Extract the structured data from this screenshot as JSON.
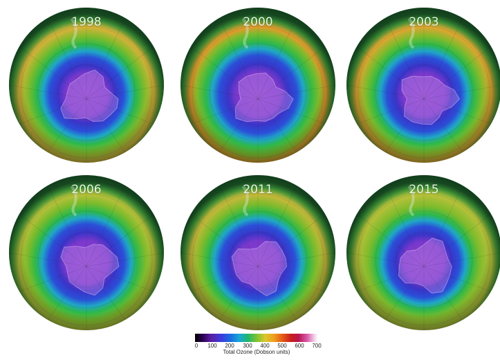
{
  "panels": [
    {
      "year": "1998",
      "hole_scale": 1.0,
      "rim_color": "#d9b23a"
    },
    {
      "year": "2000",
      "hole_scale": 1.05,
      "rim_color": "#e69a2c"
    },
    {
      "year": "2003",
      "hole_scale": 1.0,
      "rim_color": "#e2a531"
    },
    {
      "year": "2006",
      "hole_scale": 1.02,
      "rim_color": "#b8c03a"
    },
    {
      "year": "2011",
      "hole_scale": 1.0,
      "rim_color": "#c8b83a"
    },
    {
      "year": "2015",
      "hole_scale": 0.96,
      "rim_color": "#b9c13a"
    }
  ],
  "legend": {
    "ticks": [
      "0",
      "100",
      "200",
      "300",
      "400",
      "500",
      "600",
      "700"
    ],
    "title": "Total Ozone (Dobson units)"
  }
}
